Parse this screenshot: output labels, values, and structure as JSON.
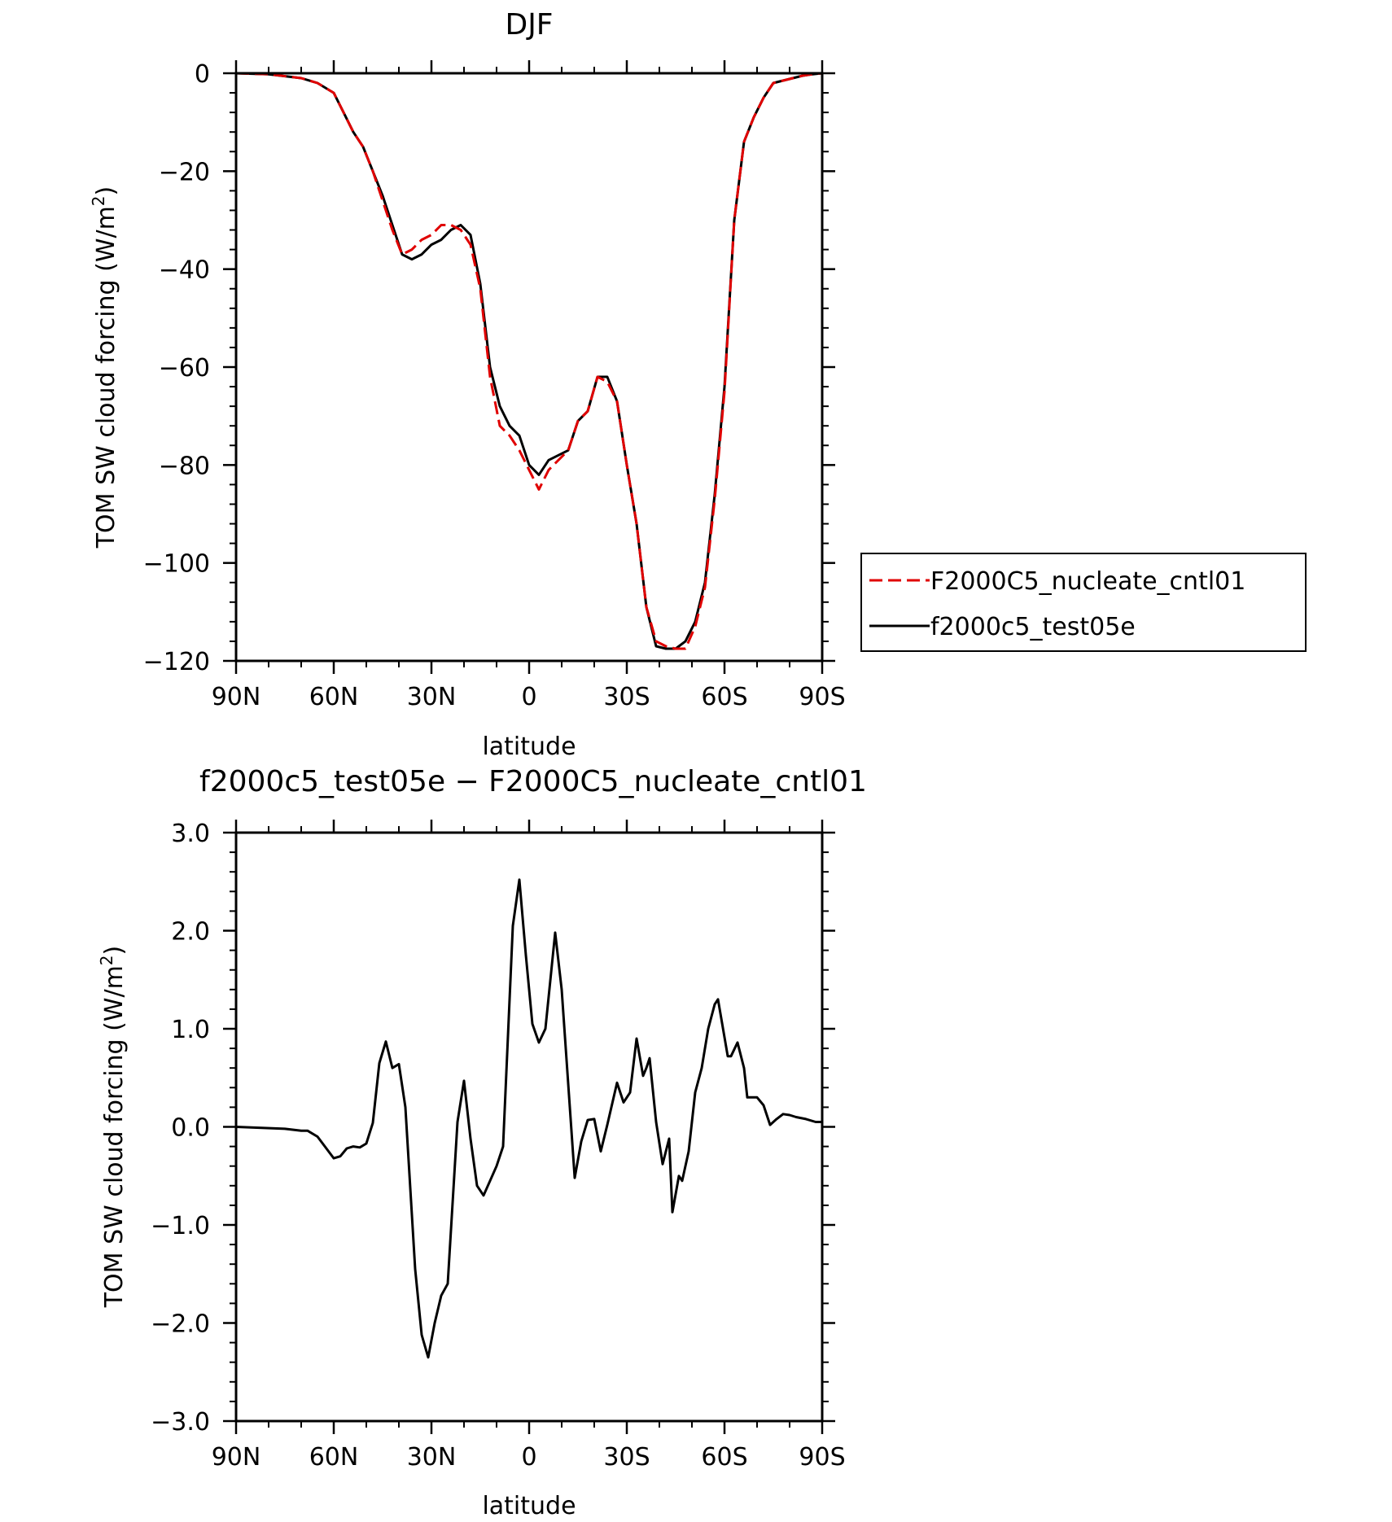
{
  "figure": {
    "background": "#ffffff"
  },
  "chart_data": [
    {
      "type": "line",
      "title": "DJF",
      "xlabel": "latitude",
      "ylabel": "TOM SW cloud forcing (W/m²)",
      "ylabel_main": "TOM SW cloud forcing (W/m",
      "ylabel_sup": "2",
      "ylabel_close": ")",
      "xlim": [
        90,
        -90
      ],
      "ylim": [
        -120,
        0
      ],
      "x_ticks": [
        90,
        60,
        30,
        0,
        -30,
        -60,
        -90
      ],
      "x_tick_labels": [
        "90N",
        "60N",
        "30N",
        "0",
        "30S",
        "60S",
        "90S"
      ],
      "y_ticks": [
        0,
        -20,
        -40,
        -60,
        -80,
        -100,
        -120
      ],
      "y_tick_labels": [
        "0",
        "−20",
        "−40",
        "−60",
        "−80",
        "−100",
        "−120"
      ],
      "legend_position": "right",
      "series": [
        {
          "name": "F2000C5_nucleate_cntl01",
          "color": "#e00000",
          "dash": "dashed",
          "x": [
            90,
            80,
            70,
            65,
            60,
            57,
            54,
            51,
            48,
            45,
            42,
            39,
            36,
            33,
            30,
            27,
            24,
            21,
            18,
            15,
            12,
            9,
            6,
            3,
            0,
            -3,
            -6,
            -9,
            -12,
            -15,
            -18,
            -21,
            -24,
            -27,
            -30,
            -33,
            -36,
            -39,
            -42,
            -45,
            -48,
            -51,
            -54,
            -57,
            -60,
            -63,
            -66,
            -69,
            -72,
            -75,
            -78,
            -81,
            -84,
            -87,
            -90
          ],
          "y": [
            0,
            -0.2,
            -1,
            -2,
            -4,
            -8,
            -12,
            -15,
            -20,
            -26,
            -32,
            -37,
            -36,
            -34,
            -33,
            -31,
            -31,
            -32,
            -35,
            -44,
            -62,
            -72,
            -74,
            -77,
            -81,
            -85,
            -81,
            -79,
            -77,
            -71,
            -69,
            -62,
            -63,
            -67,
            -80,
            -92,
            -109,
            -116,
            -117,
            -117.5,
            -117.5,
            -113,
            -105,
            -87,
            -65,
            -30,
            -14,
            -9,
            -5,
            -2,
            -1.5,
            -1,
            -0.5,
            -0.2,
            0
          ]
        },
        {
          "name": "f2000c5_test05e",
          "color": "#000000",
          "dash": "solid",
          "x": [
            90,
            80,
            70,
            65,
            60,
            57,
            54,
            51,
            48,
            45,
            42,
            39,
            36,
            33,
            30,
            27,
            24,
            21,
            18,
            15,
            12,
            9,
            6,
            3,
            0,
            -3,
            -6,
            -9,
            -12,
            -15,
            -18,
            -21,
            -24,
            -27,
            -30,
            -33,
            -36,
            -39,
            -42,
            -45,
            -48,
            -51,
            -54,
            -57,
            -60,
            -63,
            -66,
            -69,
            -72,
            -75,
            -78,
            -81,
            -84,
            -87,
            -90
          ],
          "y": [
            0,
            -0.2,
            -1,
            -2,
            -4,
            -8,
            -12,
            -15,
            -20,
            -25,
            -31,
            -37,
            -38,
            -37,
            -35,
            -34,
            -32,
            -31,
            -33,
            -43,
            -60,
            -68,
            -72,
            -74,
            -80,
            -82,
            -79,
            -78,
            -77,
            -71,
            -69,
            -62,
            -62,
            -67,
            -80,
            -92,
            -109,
            -117,
            -117.5,
            -117.5,
            -116,
            -112,
            -104,
            -86,
            -64,
            -30,
            -14,
            -9,
            -5,
            -2,
            -1.5,
            -1,
            -0.5,
            -0.2,
            0
          ]
        }
      ]
    },
    {
      "type": "line",
      "title": "f2000c5_test05e − F2000C5_nucleate_cntl01",
      "xlabel": "latitude",
      "ylabel": "TOM SW cloud forcing (W/m²)",
      "ylabel_main": "TOM SW cloud forcing (W/m",
      "ylabel_sup": "2",
      "ylabel_close": ")",
      "xlim": [
        90,
        -90
      ],
      "ylim": [
        -3,
        3
      ],
      "x_ticks": [
        90,
        60,
        30,
        0,
        -30,
        -60,
        -90
      ],
      "x_tick_labels": [
        "90N",
        "60N",
        "30N",
        "0",
        "30S",
        "60S",
        "90S"
      ],
      "y_ticks": [
        3,
        2,
        1,
        0,
        -1,
        -2,
        -3
      ],
      "y_tick_labels": [
        "3.0",
        "2.0",
        "1.0",
        "0.0",
        "−1.0",
        "−2.0",
        "−3.0"
      ],
      "series": [
        {
          "color": "#000000",
          "dash": "solid",
          "x": [
            90,
            75,
            70,
            68,
            65,
            60,
            58,
            56,
            54,
            52,
            50,
            48,
            46,
            44,
            42,
            40,
            38,
            35,
            33,
            31,
            29,
            27,
            25,
            22,
            20,
            18,
            16,
            14,
            12,
            10,
            8,
            5,
            3,
            1,
            -1,
            -3,
            -5,
            -8,
            -10,
            -14,
            -16,
            -18,
            -20,
            -22,
            -24,
            -27,
            -29,
            -31,
            -33,
            -35,
            -36,
            -37,
            -39,
            -41,
            -43,
            -44,
            -46,
            -47,
            -49,
            -51,
            -53,
            -55,
            -57,
            -58,
            -61,
            -62,
            -64,
            -66,
            -67,
            -70,
            -72,
            -74,
            -76,
            -78,
            -80,
            -82,
            -85,
            -88,
            -90
          ],
          "y": [
            0,
            -0.02,
            -0.04,
            -0.04,
            -0.1,
            -0.32,
            -0.3,
            -0.22,
            -0.2,
            -0.21,
            -0.17,
            0.04,
            0.65,
            0.87,
            0.6,
            0.64,
            0.2,
            -1.45,
            -2.12,
            -2.35,
            -2.0,
            -1.72,
            -1.6,
            0.05,
            0.47,
            -0.12,
            -0.6,
            -0.7,
            -0.55,
            -0.4,
            -0.2,
            2.05,
            2.52,
            1.75,
            1.05,
            0.86,
            1.0,
            1.98,
            1.4,
            -0.52,
            -0.15,
            0.07,
            0.08,
            -0.25,
            0.02,
            0.45,
            0.25,
            0.35,
            0.9,
            0.52,
            0.6,
            0.7,
            0.05,
            -0.38,
            -0.12,
            -0.87,
            -0.5,
            -0.55,
            -0.25,
            0.35,
            0.6,
            1.0,
            1.25,
            1.3,
            0.72,
            0.72,
            0.86,
            0.6,
            0.3,
            0.3,
            0.22,
            0.02,
            0.08,
            0.13,
            0.12,
            0.1,
            0.08,
            0.05,
            0.05
          ]
        }
      ]
    }
  ]
}
